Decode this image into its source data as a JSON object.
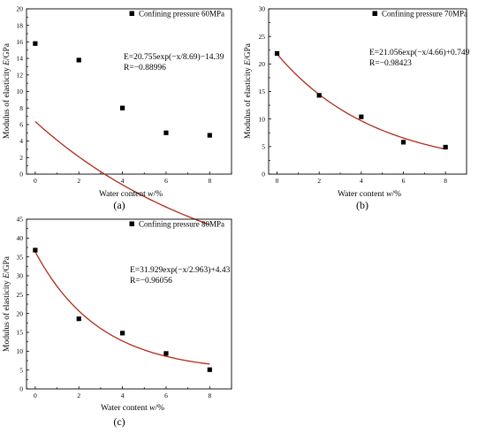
{
  "chart_data": [
    {
      "type": "scatter",
      "panel_label": "(a)",
      "legend": "Confining pressure 60MPa",
      "equation": "E=20.755exp(−x/8.69)−14.39",
      "r_value": "R=−0.88996",
      "xlabel_prefix": "Water content",
      "xlabel_symbol": "w",
      "xlabel_unit": "/%",
      "ylabel_prefix": "Modulus of elasticity",
      "ylabel_symbol": "E",
      "ylabel_unit": "/GPa",
      "x": [
        0,
        2,
        4,
        6,
        8
      ],
      "y": [
        15.8,
        13.8,
        8.0,
        5.0,
        4.7
      ],
      "fit": {
        "A": 20.755,
        "t": 8.69,
        "y0": -14.39
      },
      "xlim": [
        -0.4,
        9
      ],
      "ylim": [
        0,
        20
      ],
      "xticks": [
        0,
        2,
        4,
        6,
        8
      ],
      "yticks": [
        0,
        2,
        4,
        6,
        8,
        10,
        12,
        14,
        16,
        18,
        20
      ]
    },
    {
      "type": "scatter",
      "panel_label": "(b)",
      "legend": "Confining pressure  70MPa",
      "equation": "E=21.056exp(−x/4.66)+0.749",
      "r_value": "R=−0.98423",
      "xlabel_prefix": "Water content",
      "xlabel_symbol": "w",
      "xlabel_unit": "/%",
      "ylabel_prefix": "Modulus of elasticity",
      "ylabel_symbol": "E",
      "ylabel_unit": "/GPa",
      "x": [
        0,
        2,
        4,
        6,
        8
      ],
      "y": [
        21.9,
        14.3,
        10.4,
        5.8,
        4.9
      ],
      "fit": {
        "A": 21.056,
        "t": 4.66,
        "y0": 0.749
      },
      "xlim": [
        -0.4,
        9
      ],
      "ylim": [
        0,
        30
      ],
      "xticks": [
        0,
        2,
        4,
        6,
        8
      ],
      "yticks": [
        0,
        5,
        10,
        15,
        20,
        25,
        30
      ]
    },
    {
      "type": "scatter",
      "panel_label": "(c)",
      "legend": "Confining pressure 80MPa",
      "equation": "E=31.929exp(−x/2.963)+4.43",
      "r_value": "R=−0.96056",
      "xlabel_prefix": "Water content",
      "xlabel_symbol": "w",
      "xlabel_unit": "/%",
      "ylabel_prefix": "Modulus of elasticity",
      "ylabel_symbol": "E",
      "ylabel_unit": "/GPa",
      "x": [
        0,
        2,
        4,
        6,
        8
      ],
      "y": [
        36.8,
        18.6,
        14.8,
        9.4,
        5.1
      ],
      "fit": {
        "A": 31.929,
        "t": 2.963,
        "y0": 4.43
      },
      "xlim": [
        -0.4,
        9
      ],
      "ylim": [
        0,
        45
      ],
      "xticks": [
        0,
        2,
        4,
        6,
        8
      ],
      "yticks": [
        0,
        5,
        10,
        15,
        20,
        25,
        30,
        35,
        40,
        45
      ]
    }
  ]
}
